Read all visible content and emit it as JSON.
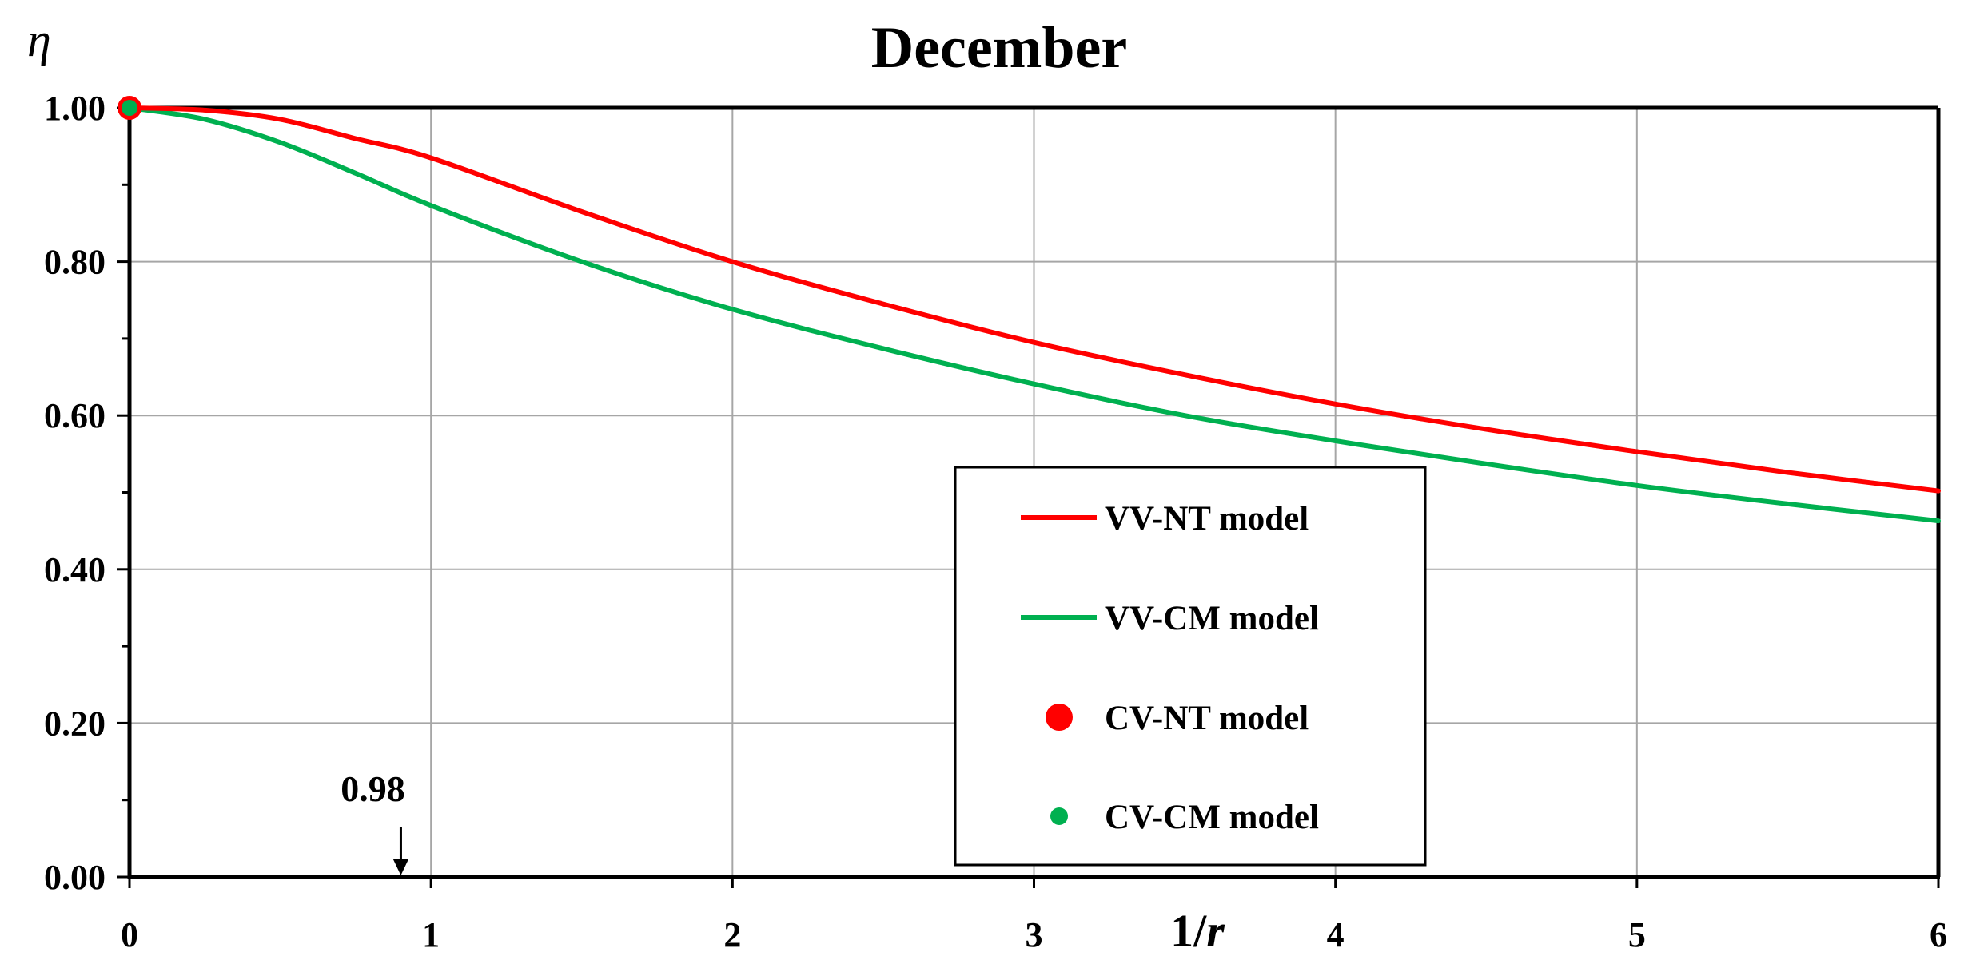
{
  "chart_data": {
    "type": "line",
    "title": "December",
    "ylabel": "η",
    "xlabel": "1/r",
    "xlabel_parts": [
      "1/",
      "r"
    ],
    "xlim": [
      0,
      6
    ],
    "ylim": [
      0,
      1.0
    ],
    "x_ticks": [
      0,
      1,
      2,
      3,
      4,
      5,
      6
    ],
    "x_tick_labels": [
      "0",
      "1",
      "2",
      "3",
      "4",
      "5",
      "6"
    ],
    "y_ticks": [
      0,
      0.2,
      0.4,
      0.6,
      0.8,
      1.0
    ],
    "y_tick_labels": [
      "0.00",
      "0.20",
      "0.40",
      "0.60",
      "0.80",
      "1.00"
    ],
    "grid": true,
    "legend_position": "center-right",
    "series": [
      {
        "name": "VV-NT model",
        "kind": "line",
        "color": "#ff0000",
        "x": [
          0,
          0.25,
          0.5,
          0.75,
          1,
          1.5,
          2,
          2.5,
          3,
          3.5,
          4,
          4.5,
          5,
          5.5,
          6
        ],
        "y": [
          1.0,
          0.997,
          0.985,
          0.96,
          0.935,
          0.865,
          0.8,
          0.745,
          0.695,
          0.653,
          0.615,
          0.582,
          0.553,
          0.526,
          0.502
        ]
      },
      {
        "name": "VV-CM model",
        "kind": "line",
        "color": "#00b050",
        "x": [
          0,
          0.25,
          0.5,
          0.75,
          1,
          1.5,
          2,
          2.5,
          3,
          3.5,
          4,
          4.5,
          5,
          5.5,
          6
        ],
        "y": [
          1.0,
          0.985,
          0.955,
          0.915,
          0.873,
          0.8,
          0.738,
          0.687,
          0.641,
          0.6,
          0.567,
          0.537,
          0.509,
          0.485,
          0.463
        ]
      },
      {
        "name": "CV-NT model",
        "kind": "scatter",
        "color": "#ff0000",
        "x": [
          0
        ],
        "y": [
          1.0
        ]
      },
      {
        "name": "CV-CM model",
        "kind": "scatter",
        "color": "#00b050",
        "x": [
          0
        ],
        "y": [
          1.0
        ]
      }
    ],
    "annotations": [
      {
        "text": "0.98",
        "x": 0.9,
        "y": 0,
        "marker": "down-arrow"
      }
    ]
  }
}
